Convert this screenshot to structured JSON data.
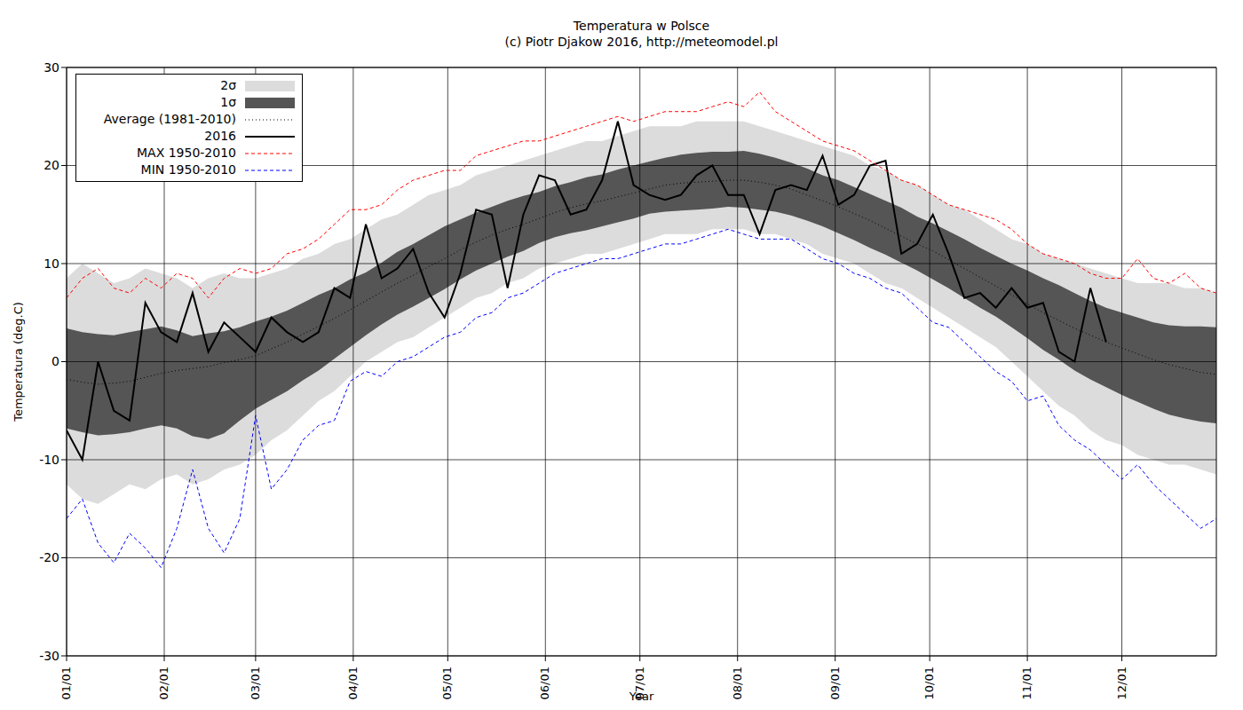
{
  "chart_data": {
    "type": "line",
    "title": "Temperatura w Polsce",
    "subtitle": "(c) Piotr Djakow 2016, http://meteomodel.pl",
    "x_label": "Year",
    "y_label": "Temperatura (deg.C)",
    "legend": "top-left",
    "grid": true,
    "xlim": [
      0,
      365
    ],
    "xticks": [
      {
        "value": 0,
        "label": "01/01"
      },
      {
        "value": 31,
        "label": "02/01"
      },
      {
        "value": 60,
        "label": "03/01"
      },
      {
        "value": 91,
        "label": "04/01"
      },
      {
        "value": 121,
        "label": "05/01"
      },
      {
        "value": 152,
        "label": "06/01"
      },
      {
        "value": 182,
        "label": "07/01"
      },
      {
        "value": 213,
        "label": "08/01"
      },
      {
        "value": 244,
        "label": "09/01"
      },
      {
        "value": 274,
        "label": "10/01"
      },
      {
        "value": 305,
        "label": "11/01"
      },
      {
        "value": 335,
        "label": "12/01"
      }
    ],
    "ylim": [
      -30,
      30
    ],
    "yticks": [
      -30,
      -20,
      -10,
      0,
      10,
      20,
      30
    ],
    "x": [
      0,
      5,
      10,
      15,
      20,
      25,
      30,
      35,
      40,
      45,
      50,
      55,
      60,
      65,
      70,
      75,
      80,
      85,
      90,
      95,
      100,
      105,
      110,
      115,
      120,
      125,
      130,
      135,
      140,
      145,
      150,
      155,
      160,
      165,
      170,
      175,
      180,
      185,
      190,
      195,
      200,
      205,
      210,
      215,
      220,
      225,
      230,
      235,
      240,
      245,
      250,
      255,
      260,
      265,
      270,
      275,
      280,
      285,
      290,
      295,
      300,
      305,
      310,
      315,
      320,
      325,
      330,
      335,
      340,
      345,
      350,
      355,
      360,
      365
    ],
    "series": [
      {
        "name": "2σ",
        "type": "area",
        "color": "#dcdcdc",
        "values": [
          [
            -12.5,
            8.5
          ],
          [
            -14.0,
            10.0
          ],
          [
            -14.5,
            9.0
          ],
          [
            -13.5,
            8.0
          ],
          [
            -12.5,
            8.5
          ],
          [
            -13.0,
            9.5
          ],
          [
            -12.0,
            9.0
          ],
          [
            -11.5,
            8.5
          ],
          [
            -12.5,
            7.5
          ],
          [
            -12.0,
            8.5
          ],
          [
            -11.0,
            9.0
          ],
          [
            -10.5,
            8.5
          ],
          [
            -9.5,
            8.5
          ],
          [
            -8.0,
            9.0
          ],
          [
            -7.0,
            9.5
          ],
          [
            -5.5,
            10.5
          ],
          [
            -4.0,
            11.0
          ],
          [
            -3.0,
            12.0
          ],
          [
            -1.5,
            12.5
          ],
          [
            0.0,
            13.5
          ],
          [
            1.0,
            14.5
          ],
          [
            2.0,
            15.0
          ],
          [
            2.5,
            16.0
          ],
          [
            3.5,
            17.0
          ],
          [
            4.5,
            17.5
          ],
          [
            5.5,
            18.0
          ],
          [
            6.5,
            19.0
          ],
          [
            7.0,
            19.5
          ],
          [
            8.0,
            20.0
          ],
          [
            8.5,
            20.5
          ],
          [
            9.5,
            21.0
          ],
          [
            10.0,
            21.5
          ],
          [
            10.5,
            22.0
          ],
          [
            11.0,
            22.5
          ],
          [
            11.0,
            22.5
          ],
          [
            11.5,
            23.0
          ],
          [
            12.0,
            23.5
          ],
          [
            12.5,
            24.0
          ],
          [
            13.0,
            24.0
          ],
          [
            13.0,
            24.0
          ],
          [
            13.0,
            24.5
          ],
          [
            13.5,
            24.5
          ],
          [
            13.5,
            24.5
          ],
          [
            13.5,
            24.5
          ],
          [
            13.0,
            24.0
          ],
          [
            13.0,
            23.5
          ],
          [
            12.5,
            23.0
          ],
          [
            12.0,
            22.5
          ],
          [
            11.0,
            22.0
          ],
          [
            10.5,
            21.5
          ],
          [
            10.0,
            21.0
          ],
          [
            9.0,
            20.0
          ],
          [
            8.0,
            19.5
          ],
          [
            7.5,
            18.5
          ],
          [
            6.5,
            18.0
          ],
          [
            5.5,
            17.0
          ],
          [
            4.5,
            16.0
          ],
          [
            3.5,
            15.5
          ],
          [
            2.5,
            14.5
          ],
          [
            1.5,
            13.5
          ],
          [
            0.0,
            12.5
          ],
          [
            -1.5,
            12.0
          ],
          [
            -3.0,
            11.0
          ],
          [
            -4.5,
            10.5
          ],
          [
            -5.5,
            10.0
          ],
          [
            -7.0,
            9.5
          ],
          [
            -8.0,
            9.0
          ],
          [
            -8.5,
            8.5
          ],
          [
            -9.5,
            8.0
          ],
          [
            -10.0,
            8.0
          ],
          [
            -10.5,
            8.0
          ],
          [
            -10.5,
            7.5
          ],
          [
            -11.0,
            7.5
          ],
          [
            -11.5,
            7.0
          ]
        ]
      },
      {
        "name": "1σ",
        "type": "area",
        "color": "#555555",
        "values": [
          [
            -6.8,
            3.4
          ],
          [
            -7.2,
            3.0
          ],
          [
            -7.5,
            2.8
          ],
          [
            -7.4,
            2.7
          ],
          [
            -7.2,
            3.0
          ],
          [
            -6.8,
            3.3
          ],
          [
            -6.5,
            3.6
          ],
          [
            -6.8,
            3.2
          ],
          [
            -7.6,
            2.6
          ],
          [
            -7.9,
            2.9
          ],
          [
            -7.3,
            3.1
          ],
          [
            -6.0,
            3.5
          ],
          [
            -4.8,
            4.1
          ],
          [
            -3.9,
            4.6
          ],
          [
            -3.0,
            5.2
          ],
          [
            -1.9,
            6.0
          ],
          [
            -0.9,
            6.8
          ],
          [
            0.3,
            7.5
          ],
          [
            1.5,
            8.4
          ],
          [
            2.7,
            9.1
          ],
          [
            3.8,
            10.1
          ],
          [
            4.8,
            11.2
          ],
          [
            5.6,
            12.0
          ],
          [
            6.5,
            12.9
          ],
          [
            7.4,
            13.8
          ],
          [
            8.4,
            14.5
          ],
          [
            9.3,
            15.2
          ],
          [
            10.0,
            15.8
          ],
          [
            10.7,
            16.4
          ],
          [
            11.3,
            16.9
          ],
          [
            12.1,
            17.3
          ],
          [
            12.7,
            17.9
          ],
          [
            13.1,
            18.3
          ],
          [
            13.4,
            18.8
          ],
          [
            13.8,
            19.1
          ],
          [
            14.2,
            19.6
          ],
          [
            14.6,
            20.0
          ],
          [
            15.1,
            20.4
          ],
          [
            15.3,
            20.8
          ],
          [
            15.4,
            21.1
          ],
          [
            15.5,
            21.3
          ],
          [
            15.6,
            21.4
          ],
          [
            15.8,
            21.4
          ],
          [
            15.7,
            21.5
          ],
          [
            15.5,
            21.2
          ],
          [
            15.3,
            20.8
          ],
          [
            14.9,
            20.3
          ],
          [
            14.4,
            19.7
          ],
          [
            13.8,
            19.0
          ],
          [
            13.1,
            18.5
          ],
          [
            12.4,
            17.8
          ],
          [
            11.6,
            17.1
          ],
          [
            10.9,
            16.4
          ],
          [
            10.1,
            15.7
          ],
          [
            9.3,
            14.8
          ],
          [
            8.4,
            14.1
          ],
          [
            7.5,
            13.3
          ],
          [
            6.5,
            12.5
          ],
          [
            5.5,
            11.6
          ],
          [
            4.6,
            10.8
          ],
          [
            3.5,
            10.0
          ],
          [
            2.4,
            9.3
          ],
          [
            1.2,
            8.5
          ],
          [
            0.2,
            7.8
          ],
          [
            -0.9,
            7.0
          ],
          [
            -1.8,
            6.2
          ],
          [
            -2.6,
            5.5
          ],
          [
            -3.4,
            5.0
          ],
          [
            -4.1,
            4.5
          ],
          [
            -4.8,
            4.0
          ],
          [
            -5.4,
            3.7
          ],
          [
            -5.8,
            3.6
          ],
          [
            -6.1,
            3.6
          ],
          [
            -6.3,
            3.5
          ]
        ]
      },
      {
        "name": "Average (1981-2010)",
        "type": "line",
        "line_style": "dotted",
        "color": "#000000",
        "values": [
          -1.8,
          -2.1,
          -2.3,
          -2.2,
          -2.0,
          -1.6,
          -1.2,
          -0.9,
          -0.7,
          -0.5,
          -0.1,
          0.2,
          0.6,
          1.3,
          2.0,
          2.8,
          3.6,
          4.4,
          5.3,
          6.2,
          7.1,
          8.0,
          8.8,
          9.7,
          10.5,
          11.4,
          12.2,
          12.9,
          13.5,
          14.0,
          14.6,
          15.2,
          15.7,
          16.1,
          16.4,
          16.8,
          17.2,
          17.6,
          18.0,
          18.2,
          18.3,
          18.4,
          18.5,
          18.5,
          18.3,
          18.0,
          17.6,
          17.0,
          16.4,
          15.8,
          15.1,
          14.4,
          13.6,
          12.8,
          12.0,
          11.3,
          10.4,
          9.5,
          8.6,
          7.7,
          6.8,
          5.9,
          5.0,
          4.2,
          3.4,
          2.7,
          2.0,
          1.4,
          0.8,
          0.2,
          -0.3,
          -0.7,
          -1.1,
          -1.3
        ]
      },
      {
        "name": "2016",
        "type": "line",
        "line_style": "solid",
        "color": "#000000",
        "values": [
          -7,
          -10,
          0,
          -5,
          -6,
          6,
          3,
          2,
          7,
          1,
          4,
          2.5,
          1,
          4.5,
          3,
          2,
          3,
          7.5,
          6.5,
          14,
          8.5,
          9.5,
          11.5,
          7,
          4.5,
          9,
          15.5,
          15,
          7.5,
          15,
          19,
          18.5,
          15,
          15.5,
          18.5,
          24.5,
          18,
          17,
          16.5,
          17,
          19,
          20,
          17,
          17,
          13,
          17.5,
          18,
          17.5,
          21,
          16,
          17,
          20,
          20.5,
          11,
          12,
          15,
          11,
          6.5,
          7,
          5.5,
          7.5,
          5.5,
          6,
          1,
          0,
          7.5,
          2,
          null,
          null,
          null,
          null,
          null,
          null,
          null
        ]
      },
      {
        "name": "MAX 1950-2010",
        "type": "line",
        "line_style": "dashed",
        "color": "#ff0000",
        "values": [
          6.5,
          8.5,
          9.5,
          7.5,
          7.0,
          8.5,
          7.5,
          9.0,
          8.5,
          6.5,
          8.5,
          9.5,
          9.0,
          9.5,
          11.0,
          11.5,
          12.5,
          14.0,
          15.5,
          15.5,
          16.0,
          17.5,
          18.5,
          19.0,
          19.5,
          19.5,
          21.0,
          21.5,
          22.0,
          22.5,
          22.5,
          23.0,
          23.5,
          24.0,
          24.5,
          25.0,
          24.5,
          25.0,
          25.5,
          25.5,
          25.5,
          26.0,
          26.5,
          26.0,
          27.5,
          25.5,
          24.5,
          23.5,
          22.5,
          22.0,
          21.5,
          20.5,
          19.5,
          18.5,
          18.0,
          17.0,
          16.0,
          15.5,
          15.0,
          14.5,
          13.5,
          12.0,
          11.0,
          10.5,
          10.0,
          9.0,
          8.5,
          8.5,
          10.5,
          8.5,
          8.0,
          9.0,
          7.5,
          7.0
        ]
      },
      {
        "name": "MIN 1950-2010",
        "type": "line",
        "line_style": "dashed",
        "color": "#0000ff",
        "values": [
          -16.0,
          -14.0,
          -18.5,
          -20.5,
          -17.5,
          -19.0,
          -21.0,
          -17.0,
          -11.0,
          -17.0,
          -19.5,
          -16.0,
          -5.5,
          -13.0,
          -11.0,
          -8.0,
          -6.5,
          -6.0,
          -2.0,
          -1.0,
          -1.5,
          0.0,
          0.5,
          1.5,
          2.5,
          3.0,
          4.5,
          5.0,
          6.5,
          7.0,
          8.0,
          9.0,
          9.5,
          10.0,
          10.5,
          10.5,
          11.0,
          11.5,
          12.0,
          12.0,
          12.5,
          13.0,
          13.5,
          13.0,
          12.5,
          12.5,
          12.5,
          11.5,
          10.5,
          10.0,
          9.0,
          8.5,
          7.5,
          7.0,
          5.5,
          4.0,
          3.5,
          2.0,
          0.5,
          -1.0,
          -2.0,
          -4.0,
          -3.5,
          -6.5,
          -8.0,
          -9.0,
          -10.5,
          -12.0,
          -10.5,
          -12.5,
          -14.0,
          -15.5,
          -17.0,
          -16.0
        ]
      }
    ]
  }
}
